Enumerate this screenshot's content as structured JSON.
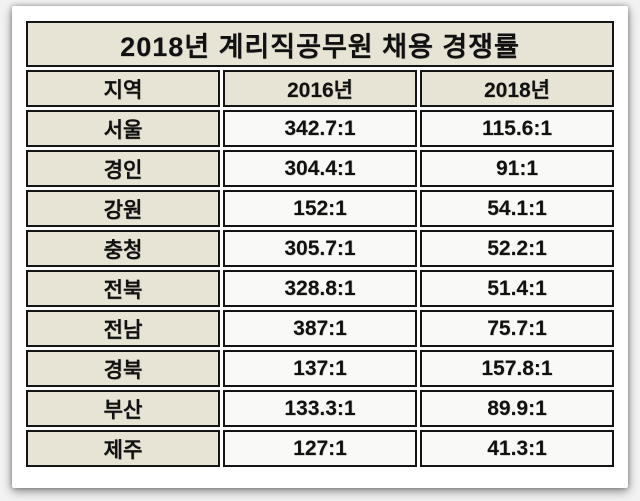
{
  "chart_data": {
    "type": "table",
    "title": "2018년 계리직공무원 채용 경쟁률",
    "columns": [
      "지역",
      "2016년",
      "2018년"
    ],
    "rows": [
      [
        "서울",
        "342.7:1",
        "115.6:1"
      ],
      [
        "경인",
        "304.4:1",
        "91:1"
      ],
      [
        "강원",
        "152:1",
        "54.1:1"
      ],
      [
        "충청",
        "305.7:1",
        "52.2:1"
      ],
      [
        "전북",
        "328.8:1",
        "51.4:1"
      ],
      [
        "전남",
        "387:1",
        "75.7:1"
      ],
      [
        "경북",
        "137:1",
        "157.8:1"
      ],
      [
        "부산",
        "133.3:1",
        "89.9:1"
      ],
      [
        "제주",
        "127:1",
        "41.3:1"
      ]
    ]
  },
  "colors": {
    "header_bg": "#e7e3d5",
    "cell_bg": "#f9f9f7",
    "border": "#141414",
    "text": "#111111"
  }
}
